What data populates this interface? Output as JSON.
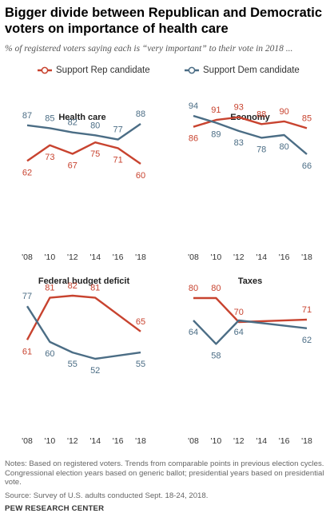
{
  "title": "Bigger divide between Republican and Democratic voters on importance of health care",
  "subtitle": "% of registered voters saying each is “very important” to their vote in 2018 ...",
  "legend": {
    "rep_label": "Support Rep candidate",
    "dem_label": "Support Dem candidate"
  },
  "colors": {
    "rep": "#c8432f",
    "dem": "#4b6d85",
    "axis_text": "#333333"
  },
  "notes": "Notes: Based on registered voters. Trends from comparable points in previous election cycles. Congressional election years based on generic ballot; presidential years based on presidential vote.",
  "source": "Source: Survey of U.S. adults conducted Sept. 18-24, 2018.",
  "credit": "PEW RESEARCH CENTER",
  "chart_data": [
    {
      "type": "line",
      "title": "Health care",
      "categories": [
        "'08",
        "'10",
        "'12",
        "'14",
        "'16",
        "'18"
      ],
      "ylim": [
        50,
        95
      ],
      "series": [
        {
          "name": "Support Rep candidate",
          "values": [
            62,
            73,
            67,
            75,
            71,
            60
          ]
        },
        {
          "name": "Support Dem candidate",
          "values": [
            87,
            85,
            82,
            80,
            77,
            88
          ]
        }
      ]
    },
    {
      "type": "line",
      "title": "Economy",
      "categories": [
        "'08",
        "'10",
        "'12",
        "'14",
        "'16",
        "'18"
      ],
      "ylim": [
        50,
        95
      ],
      "series": [
        {
          "name": "Support Rep candidate",
          "values": [
            86,
            91,
            93,
            88,
            90,
            85
          ]
        },
        {
          "name": "Support Dem candidate",
          "values": [
            94,
            89,
            83,
            78,
            80,
            66
          ]
        }
      ]
    },
    {
      "type": "line",
      "title": "Federal budget deficit",
      "categories": [
        "'08",
        "'10",
        "'12",
        "'14",
        "'16",
        "'18"
      ],
      "ylim": [
        40,
        95
      ],
      "series": [
        {
          "name": "Support Rep candidate",
          "values": [
            61,
            81,
            82,
            81,
            null,
            65
          ]
        },
        {
          "name": "Support Dem candidate",
          "values": [
            77,
            60,
            55,
            52,
            null,
            55
          ]
        }
      ]
    },
    {
      "type": "line",
      "title": "Taxes",
      "categories": [
        "'08",
        "'10",
        "'12",
        "'14",
        "'16",
        "'18"
      ],
      "ylim": [
        40,
        95
      ],
      "series": [
        {
          "name": "Support Rep candidate",
          "values": [
            80,
            80,
            70,
            null,
            null,
            71
          ]
        },
        {
          "name": "Support Dem candidate",
          "values": [
            64,
            58,
            64,
            null,
            null,
            62
          ]
        }
      ]
    }
  ]
}
